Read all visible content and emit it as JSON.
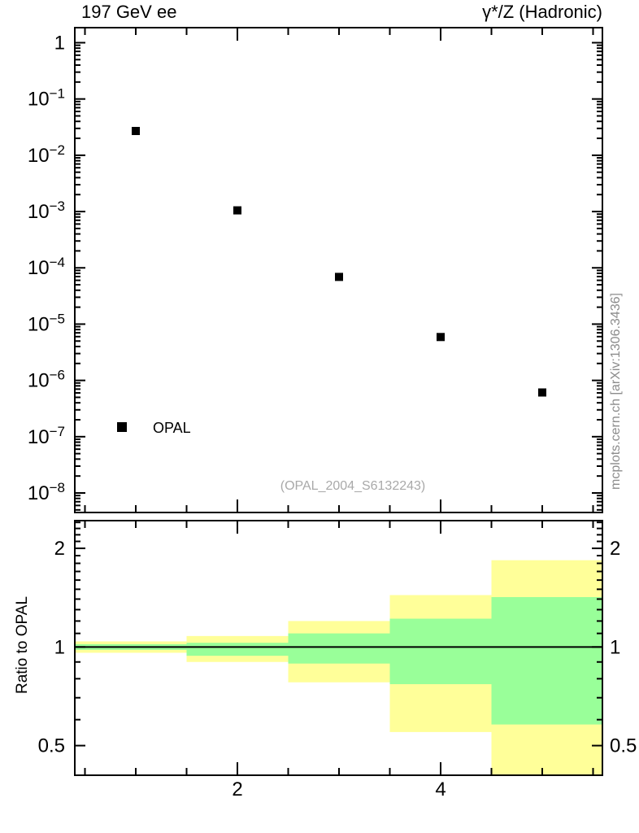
{
  "titles": {
    "left": "197 GeV ee",
    "right": "γ*/Z (Hadronic)"
  },
  "watermark": "(OPAL_2004_S6132243)",
  "side_note": "mcplots.cern.ch [arXiv:1306.3436]",
  "colors": {
    "marker": "#000000",
    "band_outer": "#ffff99",
    "band_inner": "#99ff99",
    "frame": "#000000",
    "muted_text": "#8c8c8c",
    "watermark_text": "#a9a9a9"
  },
  "chart_data": [
    {
      "type": "scatter",
      "title": "197 GeV ee",
      "subtitle": "γ*/Z (Hadronic)",
      "annotation": "(OPAL_2004_S6132243)",
      "xscale": "linear",
      "yscale": "log",
      "xlim": [
        0.4,
        5.592
      ],
      "ylim": [
        4.5e-09,
        1.85
      ],
      "xticks_major": [
        2,
        4
      ],
      "xticks_minor": [
        0.5,
        1,
        1.5,
        2.5,
        3,
        3.5,
        4.5,
        5,
        5.5
      ],
      "ytick_exponents": [
        0,
        -1,
        -2,
        -3,
        -4,
        -5,
        -6,
        -7,
        -8
      ],
      "grid": false,
      "legend_position": "lower-left",
      "legend": [
        {
          "label": "OPAL",
          "marker": "filled-square"
        }
      ],
      "series": [
        {
          "name": "OPAL",
          "marker": "filled-square",
          "color": "#000000",
          "x": [
            1,
            2,
            3,
            4,
            5
          ],
          "y": [
            0.027,
            0.00105,
            6.9e-05,
            5.9e-06,
            6.1e-07
          ]
        }
      ]
    },
    {
      "type": "band-ratio",
      "ylabel": "Ratio to OPAL",
      "yscale": "log",
      "xlim": [
        0.4,
        5.592
      ],
      "ylim": [
        0.406,
        2.43
      ],
      "reference_line": 1,
      "yticks_major": [
        {
          "v": 0.5,
          "label": "0.5"
        },
        {
          "v": 1,
          "label": "1"
        },
        {
          "v": 2,
          "label": "2"
        }
      ],
      "yticks_minor": [
        0.6,
        0.7,
        0.8,
        0.9,
        1.1,
        1.2,
        1.3,
        1.4,
        1.5,
        1.6,
        1.7,
        1.8,
        1.9,
        2.1,
        2.2,
        2.3,
        2.4
      ],
      "xticks_major": [
        {
          "v": 2,
          "label": "2"
        },
        {
          "v": 4,
          "label": "4"
        }
      ],
      "xticks_minor": [
        0.5,
        1,
        1.5,
        2.5,
        3,
        3.5,
        4.5,
        5,
        5.5
      ],
      "bands": [
        {
          "x": [
            0.4,
            1.5
          ],
          "outer": [
            0.96,
            1.04
          ],
          "inner": [
            0.98,
            1.02
          ]
        },
        {
          "x": [
            1.5,
            2.5
          ],
          "outer": [
            0.9,
            1.08
          ],
          "inner": [
            0.94,
            1.03
          ]
        },
        {
          "x": [
            2.5,
            3.5
          ],
          "outer": [
            0.78,
            1.2
          ],
          "inner": [
            0.89,
            1.1
          ]
        },
        {
          "x": [
            3.5,
            4.5
          ],
          "outer": [
            0.55,
            1.44
          ],
          "inner": [
            0.77,
            1.22
          ]
        },
        {
          "x": [
            4.5,
            5.592
          ],
          "outer": [
            0.35,
            1.84
          ],
          "inner": [
            0.58,
            1.42
          ]
        }
      ]
    }
  ]
}
